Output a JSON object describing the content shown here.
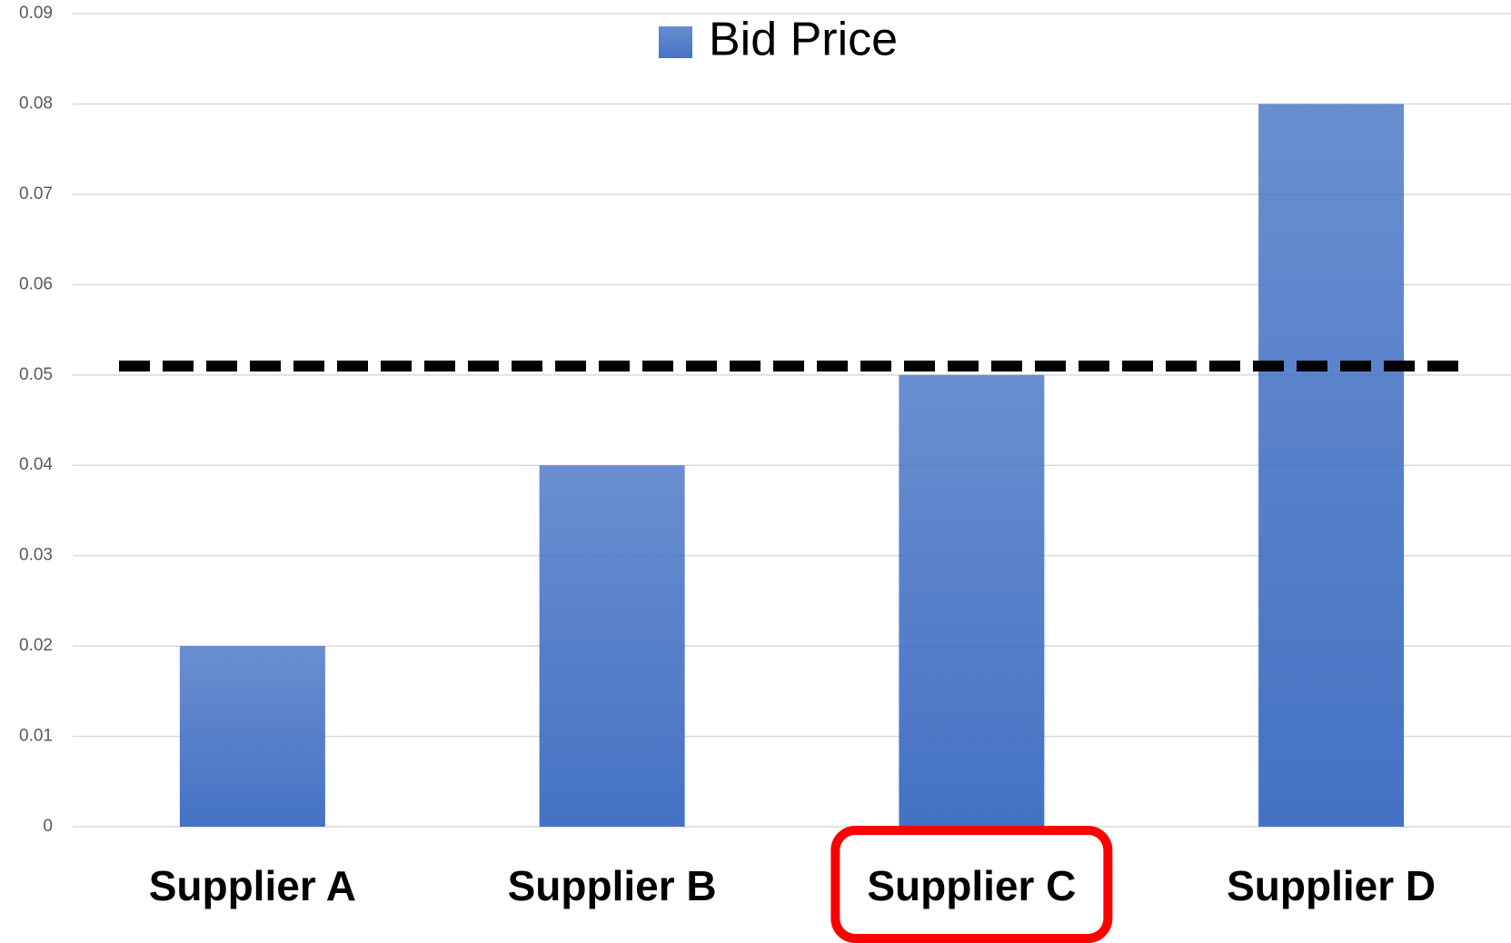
{
  "chart_data": {
    "type": "bar",
    "categories": [
      "Supplier A",
      "Supplier B",
      "Supplier C",
      "Supplier D"
    ],
    "series": [
      {
        "name": "Bid Price",
        "color": "#4472c4",
        "values": [
          0.02,
          0.04,
          0.05,
          0.08
        ]
      }
    ],
    "ylim": [
      0,
      0.09
    ],
    "yticks": [
      0,
      0.01,
      0.02,
      0.03,
      0.04,
      0.05,
      0.06,
      0.07,
      0.08,
      0.09
    ],
    "grid": true,
    "legend": "top",
    "reference_line": 0.051,
    "highlight": "Supplier C"
  }
}
